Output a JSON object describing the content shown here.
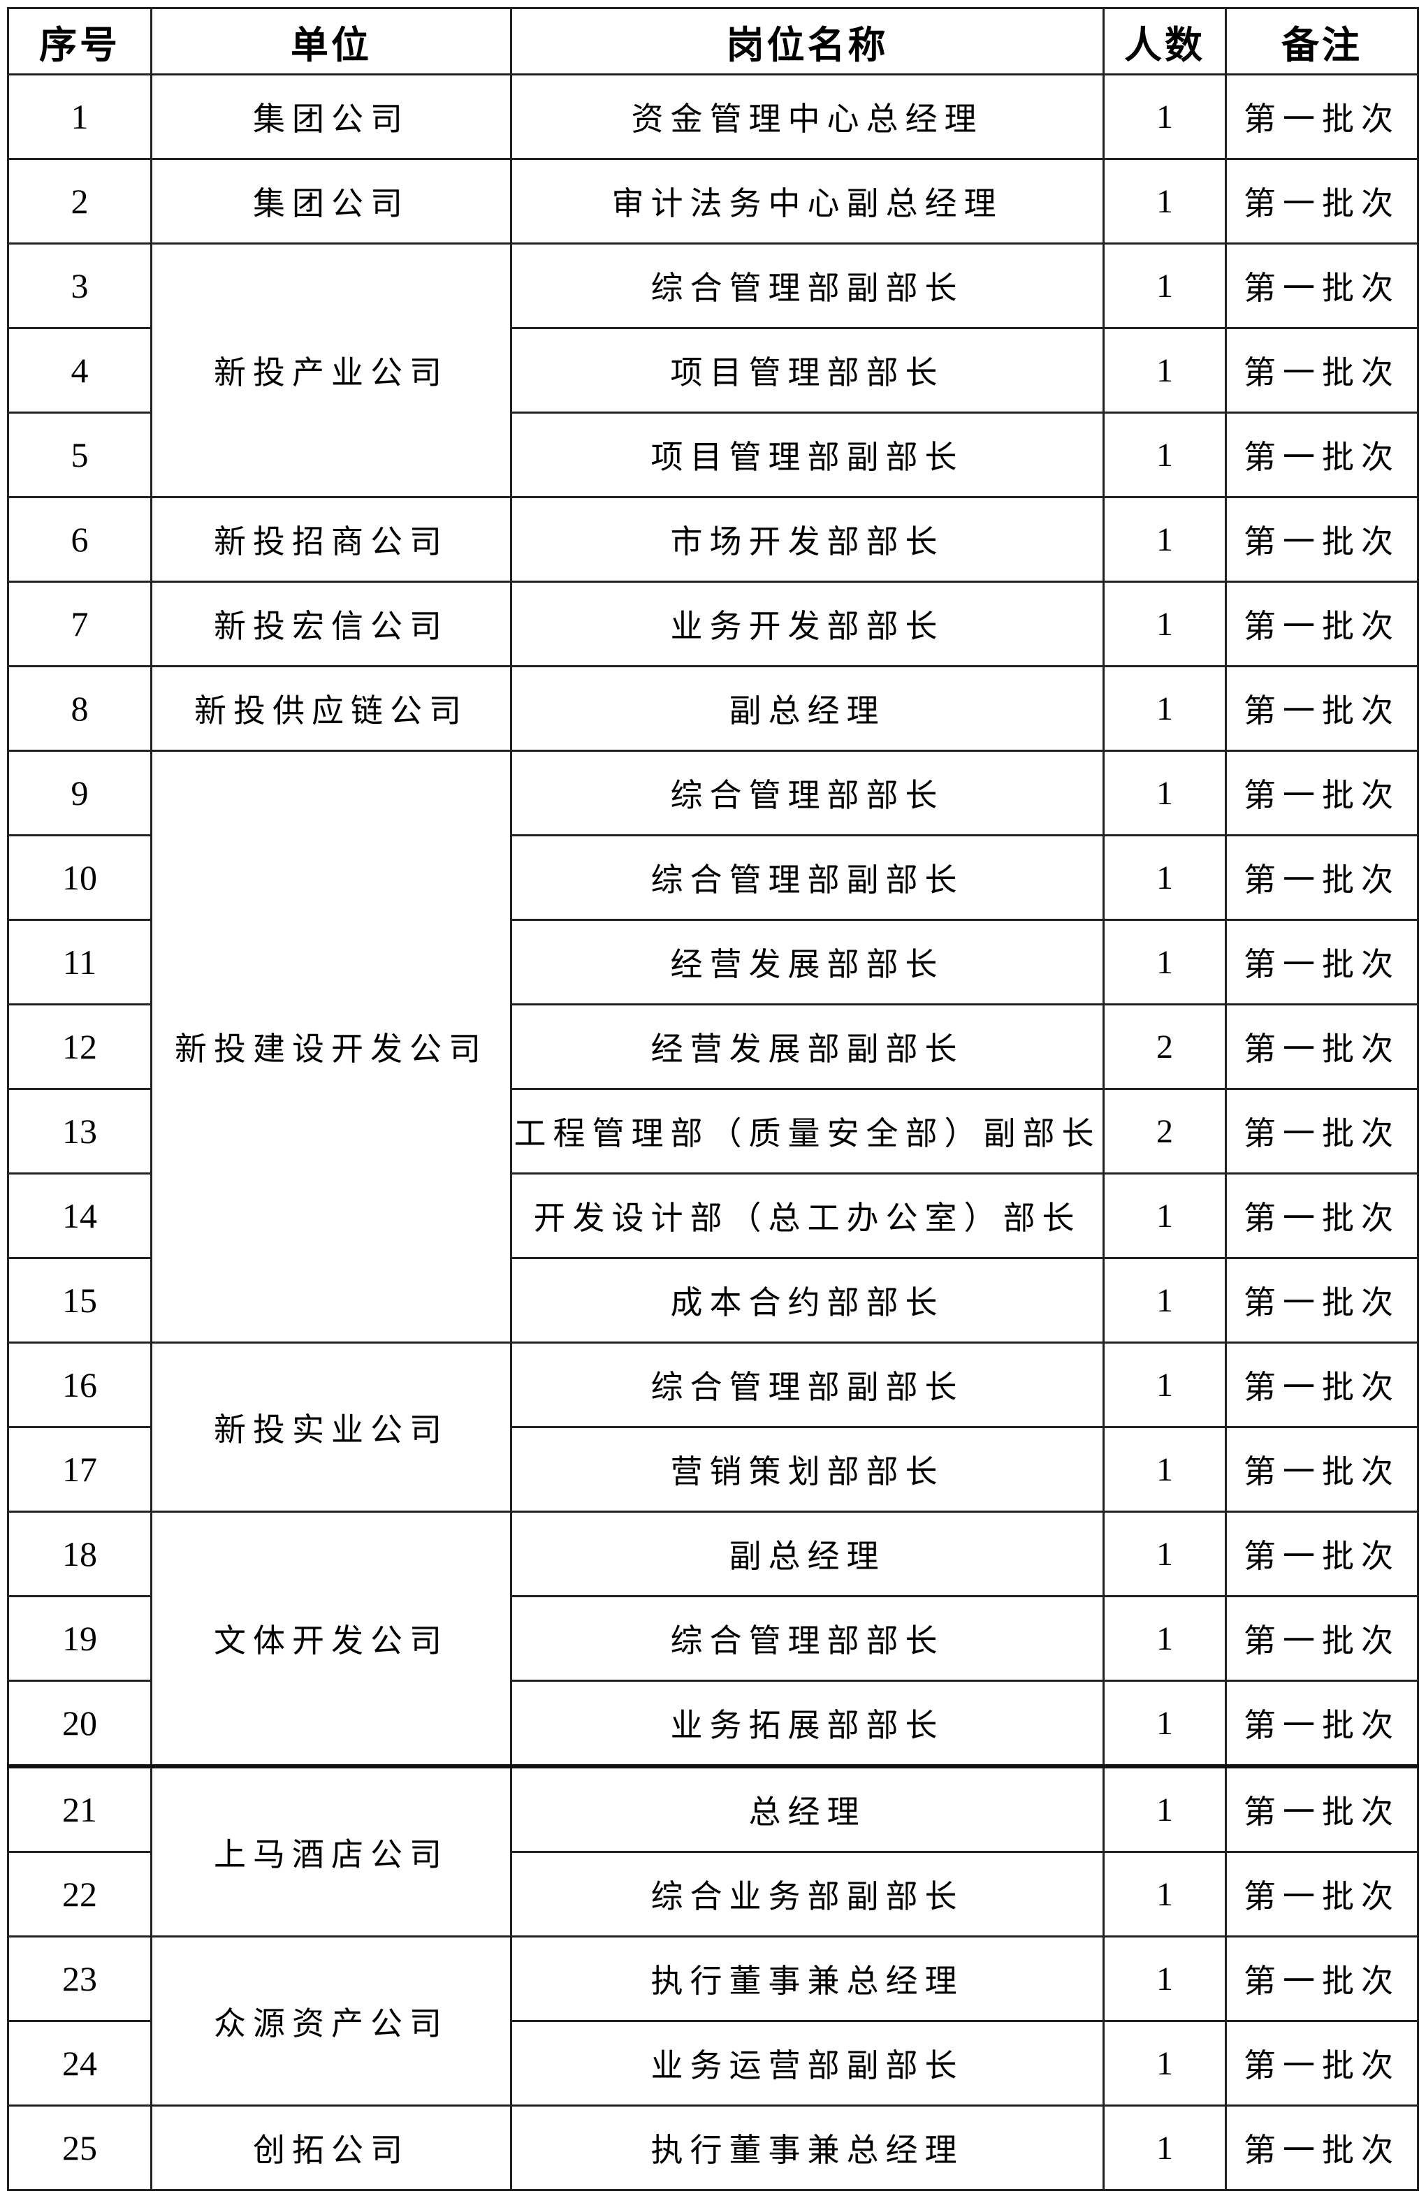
{
  "headers": {
    "seq": "序号",
    "unit": "单位",
    "position": "岗位名称",
    "count": "人数",
    "note": "备注"
  },
  "groups": [
    {
      "unit": "集团公司",
      "rows": [
        {
          "seq": "1",
          "position": "资金管理中心总经理",
          "count": "1",
          "note": "第一批次"
        }
      ]
    },
    {
      "unit": "集团公司",
      "rows": [
        {
          "seq": "2",
          "position": "审计法务中心副总经理",
          "count": "1",
          "note": "第一批次"
        }
      ]
    },
    {
      "unit": "新投产业公司",
      "rows": [
        {
          "seq": "3",
          "position": "综合管理部副部长",
          "count": "1",
          "note": "第一批次"
        },
        {
          "seq": "4",
          "position": "项目管理部部长",
          "count": "1",
          "note": "第一批次"
        },
        {
          "seq": "5",
          "position": "项目管理部副部长",
          "count": "1",
          "note": "第一批次"
        }
      ]
    },
    {
      "unit": "新投招商公司",
      "rows": [
        {
          "seq": "6",
          "position": "市场开发部部长",
          "count": "1",
          "note": "第一批次"
        }
      ]
    },
    {
      "unit": "新投宏信公司",
      "rows": [
        {
          "seq": "7",
          "position": "业务开发部部长",
          "count": "1",
          "note": "第一批次"
        }
      ]
    },
    {
      "unit": "新投供应链公司",
      "rows": [
        {
          "seq": "8",
          "position": "副总经理",
          "count": "1",
          "note": "第一批次"
        }
      ]
    },
    {
      "unit": "新投建设开发公司",
      "rows": [
        {
          "seq": "9",
          "position": "综合管理部部长",
          "count": "1",
          "note": "第一批次"
        },
        {
          "seq": "10",
          "position": "综合管理部副部长",
          "count": "1",
          "note": "第一批次"
        },
        {
          "seq": "11",
          "position": "经营发展部部长",
          "count": "1",
          "note": "第一批次"
        },
        {
          "seq": "12",
          "position": "经营发展部副部长",
          "count": "2",
          "note": "第一批次"
        },
        {
          "seq": "13",
          "position": "工程管理部（质量安全部）副部长",
          "count": "2",
          "note": "第一批次"
        },
        {
          "seq": "14",
          "position": "开发设计部（总工办公室）部长",
          "count": "1",
          "note": "第一批次"
        },
        {
          "seq": "15",
          "position": "成本合约部部长",
          "count": "1",
          "note": "第一批次"
        }
      ]
    },
    {
      "unit": "新投实业公司",
      "rows": [
        {
          "seq": "16",
          "position": "综合管理部副部长",
          "count": "1",
          "note": "第一批次"
        },
        {
          "seq": "17",
          "position": "营销策划部部长",
          "count": "1",
          "note": "第一批次"
        }
      ]
    },
    {
      "unit": "文体开发公司",
      "rows": [
        {
          "seq": "18",
          "position": "副总经理",
          "count": "1",
          "note": "第一批次"
        },
        {
          "seq": "19",
          "position": "综合管理部部长",
          "count": "1",
          "note": "第一批次"
        },
        {
          "seq": "20",
          "position": "业务拓展部部长",
          "count": "1",
          "note": "第一批次"
        }
      ]
    },
    {
      "unit": "上马酒店公司",
      "rows": [
        {
          "seq": "21",
          "position": "总经理",
          "count": "1",
          "note": "第一批次"
        },
        {
          "seq": "22",
          "position": "综合业务部副部长",
          "count": "1",
          "note": "第一批次"
        }
      ]
    },
    {
      "unit": "众源资产公司",
      "rows": [
        {
          "seq": "23",
          "position": "执行董事兼总经理",
          "count": "1",
          "note": "第一批次"
        },
        {
          "seq": "24",
          "position": "业务运营部副部长",
          "count": "1",
          "note": "第一批次"
        }
      ]
    },
    {
      "unit": "创拓公司",
      "rows": [
        {
          "seq": "25",
          "position": "执行董事兼总经理",
          "count": "1",
          "note": "第一批次"
        }
      ]
    }
  ]
}
